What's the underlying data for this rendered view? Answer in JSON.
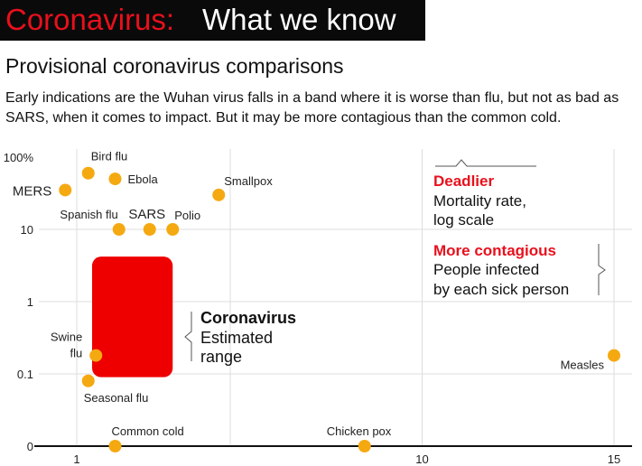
{
  "header": {
    "title_highlight": "Coronavirus:",
    "title_rest": "What we know",
    "subtitle": "Provisional coronavirus comparisons",
    "description": "Early indications are the Wuhan virus falls in a band where it is worse than flu, but not as bad as SARS, when it comes to impact. But it may be more contagious than the common cold."
  },
  "colors": {
    "accent": "#e8101c",
    "point": "#f5a911",
    "range": "#ee0000"
  },
  "chart_data": {
    "type": "scatter",
    "x_scale": "linear",
    "y_scale": "log",
    "xlim": [
      0,
      15.5
    ],
    "x_ticks": [
      {
        "value": 1,
        "label": "1"
      },
      {
        "value": 10,
        "label": "10"
      },
      {
        "value": 15,
        "label": "15"
      }
    ],
    "x_gridlines": [
      1,
      5,
      10,
      15
    ],
    "y_ticks": [
      {
        "value": 100,
        "label": "100%"
      },
      {
        "value": 10,
        "label": "10"
      },
      {
        "value": 1,
        "label": "1"
      },
      {
        "value": 0.1,
        "label": "0.1"
      },
      {
        "value": 0,
        "label": "0"
      }
    ],
    "y_gridlines": [
      10,
      1,
      0.1
    ],
    "grid": true,
    "points": [
      {
        "label": "Bird flu",
        "x": 1.3,
        "y": 60
      },
      {
        "label": "Ebola",
        "x": 2,
        "y": 50
      },
      {
        "label": "MERS",
        "x": 0.7,
        "y": 35
      },
      {
        "label": "Smallpox",
        "x": 4.7,
        "y": 30
      },
      {
        "label": "Spanish flu",
        "x": 2.1,
        "y": 10
      },
      {
        "label": "SARS",
        "x": 2.9,
        "y": 10
      },
      {
        "label": "Polio",
        "x": 3.5,
        "y": 10
      },
      {
        "label": "Swine flu",
        "x": 1.5,
        "y": 0.18
      },
      {
        "label": "Seasonal flu",
        "x": 1.3,
        "y": 0.08
      },
      {
        "label": "Common cold",
        "x": 2,
        "y": 0
      },
      {
        "label": "Chicken pox",
        "x": 8.5,
        "y": 0
      },
      {
        "label": "Measles",
        "x": 15,
        "y": 0.18
      }
    ],
    "range": {
      "label_bold": "Coronavirus",
      "label_line2": "Estimated",
      "label_line3": "range",
      "x": [
        1.4,
        3.5
      ],
      "y": [
        0.09,
        4.2
      ]
    },
    "y_annotation": {
      "title": "Deadlier",
      "line1": "Mortality rate,",
      "line2": "log scale"
    },
    "x_annotation": {
      "title": "More contagious",
      "line1": "People infected",
      "line2": "by each sick person"
    }
  }
}
